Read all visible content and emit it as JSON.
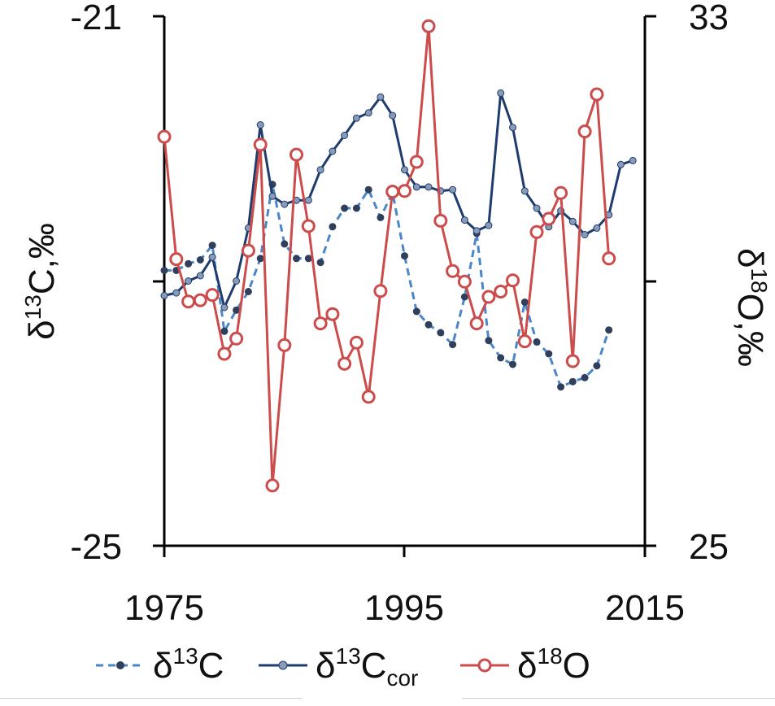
{
  "chart_data": {
    "type": "line",
    "x_axis": {
      "ticks": [
        "1975",
        "1995",
        "2015"
      ],
      "range": [
        1975,
        2015
      ]
    },
    "y_left": {
      "label_prefix": "δ",
      "label_sup": "13",
      "label_suffix": "C,‰",
      "ticks": [
        "-21",
        "-25"
      ],
      "range": [
        -25,
        -21
      ]
    },
    "y_right": {
      "label_prefix": "δ",
      "label_sup": "18",
      "label_suffix": "O,‰",
      "ticks": [
        "33",
        "25"
      ],
      "range": [
        25,
        33
      ]
    },
    "series": [
      {
        "name": "δ13C",
        "legend_base": "δ",
        "legend_sup": "13",
        "legend_after": "C",
        "legend_sub": "",
        "axis": "left",
        "style": "dashed",
        "color": "#4a86c8",
        "marker_color": "#2f3f5c",
        "x": [
          1975,
          1976,
          1977,
          1978,
          1979,
          1980,
          1981,
          1982,
          1983,
          1984,
          1985,
          1986,
          1987,
          1988,
          1989,
          1990,
          1991,
          1992,
          1993,
          1994,
          1995,
          1996,
          1997,
          1998,
          1999,
          2000,
          2001,
          2002,
          2003,
          2004,
          2005,
          2006,
          2007,
          2008,
          2009,
          2010,
          2011,
          2012
        ],
        "y": [
          -22.92,
          -22.92,
          -22.87,
          -22.84,
          -22.73,
          -23.38,
          -23.22,
          -23.08,
          -22.83,
          -22.27,
          -22.72,
          -22.83,
          -22.83,
          -22.86,
          -22.59,
          -22.45,
          -22.45,
          -22.31,
          -22.52,
          -22.33,
          -22.81,
          -23.23,
          -23.33,
          -23.39,
          -23.48,
          -23.12,
          -22.64,
          -23.45,
          -23.58,
          -23.63,
          -23.16,
          -23.46,
          -23.55,
          -23.8,
          -23.76,
          -23.73,
          -23.64,
          -23.37
        ]
      },
      {
        "name": "δ13Ccor",
        "legend_base": "δ",
        "legend_sup": "13",
        "legend_after": "C",
        "legend_sub": "cor",
        "axis": "left",
        "style": "solid",
        "color": "#1f3c6e",
        "marker_color": "#8a9bb8",
        "x": [
          1975,
          1976,
          1977,
          1978,
          1979,
          1980,
          1981,
          1982,
          1983,
          1984,
          1985,
          1986,
          1987,
          1988,
          1989,
          1990,
          1991,
          1992,
          1993,
          1994,
          1995,
          1996,
          1997,
          1998,
          1999,
          2000,
          2001,
          2002,
          2003,
          2004,
          2005,
          2006,
          2007,
          2008,
          2009,
          2010,
          2011,
          2012,
          2013,
          2014
        ],
        "y": [
          -23.11,
          -23.09,
          -23.0,
          -22.96,
          -22.82,
          -23.2,
          -23.0,
          -22.6,
          -21.82,
          -22.36,
          -22.42,
          -22.39,
          -22.39,
          -22.16,
          -22.02,
          -21.9,
          -21.77,
          -21.73,
          -21.61,
          -21.75,
          -22.16,
          -22.29,
          -22.29,
          -22.32,
          -22.31,
          -22.54,
          -22.62,
          -22.58,
          -21.58,
          -21.84,
          -22.32,
          -22.45,
          -22.59,
          -22.47,
          -22.55,
          -22.65,
          -22.6,
          -22.5,
          -22.12,
          -22.09
        ]
      },
      {
        "name": "δ18O",
        "legend_base": "δ",
        "legend_sup": "18",
        "legend_after": "O",
        "legend_sub": "",
        "axis": "right",
        "style": "solid",
        "color": "#cc4b4b",
        "marker_color": "#cc4b4b",
        "x": [
          1975,
          1976,
          1977,
          1978,
          1979,
          1980,
          1981,
          1982,
          1983,
          1984,
          1985,
          1986,
          1987,
          1988,
          1989,
          1990,
          1991,
          1992,
          1993,
          1994,
          1995,
          1996,
          1997,
          1998,
          1999,
          2000,
          2001,
          2002,
          2003,
          2004,
          2005,
          2006,
          2007,
          2008,
          2009,
          2010,
          2011,
          2012
        ],
        "y": [
          31.18,
          29.33,
          28.69,
          28.71,
          28.79,
          27.9,
          28.13,
          29.46,
          31.06,
          25.91,
          28.03,
          30.91,
          29.83,
          28.36,
          28.5,
          27.75,
          28.07,
          27.25,
          28.85,
          30.35,
          30.36,
          30.8,
          32.85,
          29.91,
          29.15,
          28.99,
          28.36,
          28.76,
          28.84,
          29.01,
          28.09,
          29.74,
          29.94,
          30.33,
          27.79,
          31.26,
          31.82,
          29.34
        ]
      }
    ]
  }
}
